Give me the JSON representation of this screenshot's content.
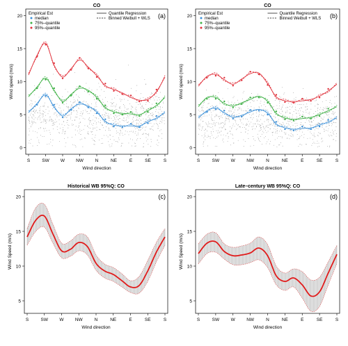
{
  "chart_data": [
    {
      "id": "a",
      "type": "scatter",
      "title": "CO",
      "panel_label": "(a)",
      "xlabel": "Wind direction",
      "ylabel": "Wind speed (m/s)",
      "ylim": [
        -1,
        21
      ],
      "yticks": [
        0,
        5,
        10,
        15,
        20
      ],
      "xticks": [
        "S",
        "SW",
        "W",
        "NW",
        "N",
        "NE",
        "E",
        "SE",
        "S"
      ],
      "xlim": [
        180,
        540
      ],
      "legend_left": {
        "title": "Empirical Est",
        "entries": [
          {
            "label": "median",
            "color": "#3a8fd8"
          },
          {
            "label": "75%–quantile",
            "color": "#3cb043"
          },
          {
            "label": "95%–quantile",
            "color": "#e0303a"
          }
        ]
      },
      "legend_right": [
        {
          "label": "Quantile Regression",
          "style": "solid"
        },
        {
          "label": "Binned Weibull + WLS",
          "style": "dashed"
        }
      ],
      "cloud": {
        "center": 4.5,
        "spread": 3.0,
        "count": 900
      },
      "series": [
        {
          "name": "median",
          "color": "#3a8fd8",
          "x": [
            180,
            202.5,
            225,
            247.5,
            270,
            292.5,
            315,
            337.5,
            360,
            382.5,
            405,
            427.5,
            450,
            472.5,
            495,
            517.5,
            540
          ],
          "y": [
            5.3,
            6.7,
            8.0,
            6.2,
            4.8,
            5.9,
            6.6,
            6.3,
            5.4,
            4.0,
            3.4,
            3.3,
            3.3,
            3.3,
            3.9,
            4.5,
            5.3
          ]
        },
        {
          "name": "75%–quantile",
          "color": "#3cb043",
          "x": [
            180,
            202.5,
            225,
            247.5,
            270,
            292.5,
            315,
            337.5,
            360,
            382.5,
            405,
            427.5,
            450,
            472.5,
            495,
            517.5,
            540
          ],
          "y": [
            7.7,
            9.2,
            10.5,
            8.7,
            7.0,
            8.1,
            9.0,
            8.7,
            7.6,
            6.1,
            5.4,
            5.2,
            5.1,
            5.0,
            5.6,
            6.4,
            7.6
          ]
        },
        {
          "name": "95%–quantile",
          "color": "#e0303a",
          "x": [
            180,
            202.5,
            225,
            247.5,
            270,
            292.5,
            315,
            337.5,
            360,
            382.5,
            405,
            427.5,
            450,
            472.5,
            495,
            517.5,
            540
          ],
          "y": [
            11.0,
            14.0,
            15.8,
            12.5,
            10.7,
            12.0,
            13.3,
            12.2,
            10.9,
            9.4,
            8.8,
            8.3,
            7.6,
            7.2,
            7.3,
            8.5,
            10.7
          ]
        }
      ]
    },
    {
      "id": "b",
      "type": "scatter",
      "title": "CO",
      "panel_label": "(b)",
      "xlabel": "Wind direction",
      "ylabel": "Wind speed (m/s)",
      "ylim": [
        -1,
        21
      ],
      "yticks": [
        0,
        5,
        10,
        15,
        20
      ],
      "xticks": [
        "S",
        "SW",
        "W",
        "NW",
        "N",
        "NE",
        "E",
        "SE",
        "S"
      ],
      "xlim": [
        180,
        540
      ],
      "legend_left": {
        "title": "Empirical Est",
        "entries": [
          {
            "label": "median",
            "color": "#3a8fd8"
          },
          {
            "label": "75%–quantile",
            "color": "#3cb043"
          },
          {
            "label": "95%–quantile",
            "color": "#e0303a"
          }
        ]
      },
      "legend_right": [
        {
          "label": "Quantile Regression",
          "style": "solid"
        },
        {
          "label": "Binned Weibull + WLS",
          "style": "dashed"
        }
      ],
      "cloud": {
        "center": 4.0,
        "spread": 2.7,
        "count": 900
      },
      "series": [
        {
          "name": "median",
          "color": "#3a8fd8",
          "x": [
            180,
            202.5,
            225,
            247.5,
            270,
            292.5,
            315,
            337.5,
            360,
            382.5,
            405,
            427.5,
            450,
            472.5,
            495,
            517.5,
            540
          ],
          "y": [
            4.5,
            5.6,
            6.0,
            5.3,
            4.6,
            4.9,
            5.4,
            5.8,
            5.2,
            3.6,
            3.0,
            2.8,
            2.9,
            3.0,
            3.4,
            3.9,
            4.5
          ]
        },
        {
          "name": "75%–quantile",
          "color": "#3cb043",
          "x": [
            180,
            202.5,
            225,
            247.5,
            270,
            292.5,
            315,
            337.5,
            360,
            382.5,
            405,
            427.5,
            450,
            472.5,
            495,
            517.5,
            540
          ],
          "y": [
            6.2,
            7.6,
            7.6,
            6.7,
            6.3,
            6.8,
            7.3,
            7.8,
            7.0,
            5.2,
            4.5,
            4.3,
            4.4,
            4.6,
            5.0,
            5.6,
            6.2
          ]
        },
        {
          "name": "95%–quantile",
          "color": "#e0303a",
          "x": [
            180,
            202.5,
            225,
            247.5,
            270,
            292.5,
            315,
            337.5,
            360,
            382.5,
            405,
            427.5,
            450,
            472.5,
            495,
            517.5,
            540
          ],
          "y": [
            9.3,
            10.8,
            11.1,
            10.3,
            9.6,
            10.4,
            11.2,
            11.3,
            9.7,
            7.7,
            7.1,
            7.0,
            7.1,
            7.3,
            7.8,
            8.6,
            9.6
          ]
        }
      ]
    },
    {
      "id": "c",
      "type": "area",
      "title": "Historical WB 95%Q:  CO",
      "panel_label": "(c)",
      "xlabel": "Wind direction",
      "ylabel": "Wind Speed (m/s)",
      "ylim": [
        3.2,
        21.0
      ],
      "yticks": [
        5,
        10,
        15,
        20
      ],
      "xticks": [
        "S",
        "SW",
        "W",
        "NW",
        "N",
        "NE",
        "E",
        "SE",
        "S"
      ],
      "xlim": [
        180,
        540
      ],
      "series": [
        {
          "name": "",
          "color": "#e11b1b",
          "x": [
            180,
            202.5,
            225,
            247.5,
            270,
            292.5,
            315,
            337.5,
            360,
            382.5,
            405,
            427.5,
            450,
            472.5,
            495,
            517.5,
            540
          ],
          "y": [
            14.2,
            16.6,
            17.2,
            14.6,
            12.2,
            12.4,
            13.4,
            12.8,
            10.4,
            9.3,
            8.8,
            7.9,
            7.0,
            7.2,
            9.3,
            12.0,
            14.2
          ],
          "lower": [
            13.0,
            15.0,
            15.6,
            13.3,
            11.2,
            11.4,
            12.2,
            11.6,
            9.4,
            8.3,
            7.8,
            7.0,
            6.2,
            6.1,
            7.8,
            10.6,
            13.0
          ],
          "upper": [
            15.4,
            18.4,
            18.9,
            16.0,
            13.3,
            13.6,
            14.6,
            14.2,
            11.6,
            10.3,
            9.8,
            8.9,
            7.9,
            8.5,
            10.8,
            13.4,
            15.4
          ]
        }
      ]
    },
    {
      "id": "d",
      "type": "area",
      "title": "Late–century WB 95%Q:  CO",
      "panel_label": "(d)",
      "xlabel": "Wind direction",
      "ylabel": "Wind Speed (m/s)",
      "ylim": [
        3.2,
        21.0
      ],
      "yticks": [
        5,
        10,
        15,
        20
      ],
      "xticks": [
        "S",
        "SW",
        "W",
        "NW",
        "N",
        "NE",
        "E",
        "SE",
        "S"
      ],
      "xlim": [
        180,
        540
      ],
      "series": [
        {
          "name": "",
          "color": "#e11b1b",
          "x": [
            180,
            202.5,
            225,
            247.5,
            270,
            292.5,
            315,
            337.5,
            360,
            382.5,
            405,
            427.5,
            450,
            472.5,
            495,
            517.5,
            540
          ],
          "y": [
            11.8,
            13.3,
            13.5,
            12.1,
            11.5,
            11.6,
            11.9,
            12.6,
            11.5,
            8.6,
            7.8,
            8.3,
            7.3,
            5.7,
            6.3,
            9.0,
            11.7
          ],
          "lower": [
            10.3,
            11.8,
            12.0,
            11.0,
            10.2,
            10.2,
            10.5,
            10.9,
            9.8,
            7.3,
            6.5,
            7.0,
            5.4,
            3.5,
            4.2,
            7.3,
            10.4
          ],
          "upper": [
            13.2,
            14.6,
            14.8,
            13.2,
            12.7,
            12.9,
            13.3,
            14.2,
            13.1,
            10.0,
            9.0,
            9.6,
            9.2,
            8.0,
            8.4,
            10.6,
            13.0
          ]
        }
      ]
    }
  ]
}
